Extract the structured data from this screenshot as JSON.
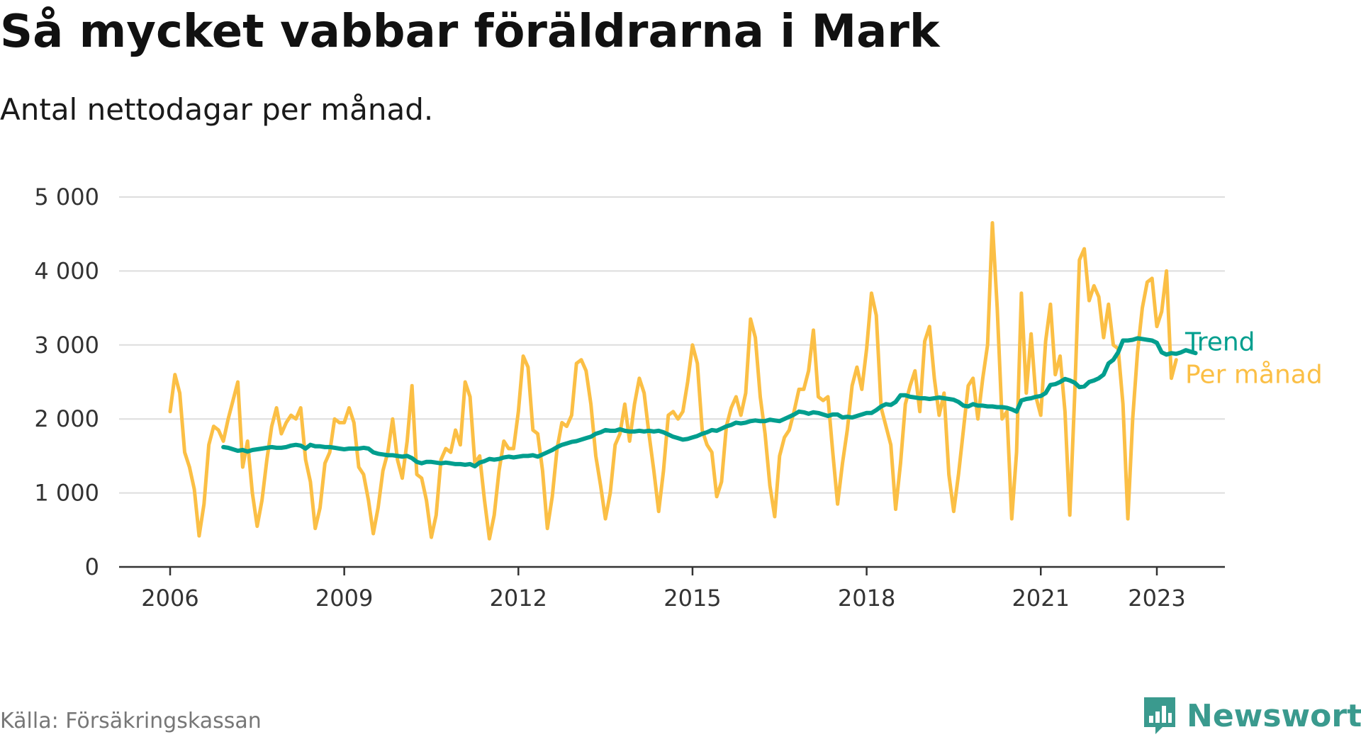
{
  "title": "Så mycket vabbar föräldrarna i Mark",
  "subtitle": "Antal nettodagar per månad.",
  "source": "Källa: Försäkringskassan",
  "brand": "Newsworthy",
  "colors": {
    "monthly": "#fbbf45",
    "trend": "#009e8e",
    "grid": "#dddddd",
    "axis": "#333333",
    "brand": "#3a9a8e"
  },
  "chart_data": {
    "type": "line",
    "title": "Så mycket vabbar föräldrarna i Mark",
    "xlabel": "",
    "ylabel": "",
    "ylim": [
      0,
      5000
    ],
    "xlim": [
      "2006-01",
      "2023-06"
    ],
    "grid": true,
    "legend": "end-of-line labels at right",
    "yticks": [
      0,
      1000,
      2000,
      3000,
      4000,
      5000
    ],
    "ytick_labels": [
      "0",
      "1 000",
      "2 000",
      "3 000",
      "4 000",
      "5 000"
    ],
    "xticks": [
      "2006-01",
      "2009-01",
      "2012-01",
      "2015-01",
      "2018-01",
      "2021-01",
      "2023-01"
    ],
    "xtick_labels": [
      "2006",
      "2009",
      "2012",
      "2015",
      "2018",
      "2021",
      "2023"
    ],
    "series": [
      {
        "name": "Per månad",
        "color": "#fbbf45",
        "start": "2006-01",
        "values": [
          2100,
          2600,
          2350,
          1550,
          1350,
          1050,
          420,
          850,
          1650,
          1900,
          1850,
          1700,
          2000,
          2250,
          2500,
          1350,
          1700,
          1000,
          550,
          900,
          1450,
          1900,
          2150,
          1800,
          1950,
          2050,
          2000,
          2150,
          1450,
          1150,
          520,
          800,
          1400,
          1550,
          2000,
          1950,
          1950,
          2150,
          1950,
          1350,
          1250,
          900,
          450,
          800,
          1300,
          1550,
          2000,
          1450,
          1200,
          1700,
          2450,
          1250,
          1200,
          900,
          400,
          700,
          1450,
          1600,
          1550,
          1850,
          1650,
          2500,
          2300,
          1400,
          1500,
          900,
          380,
          700,
          1300,
          1700,
          1600,
          1600,
          2100,
          2850,
          2700,
          1850,
          1800,
          1300,
          520,
          950,
          1600,
          1950,
          1900,
          2050,
          2750,
          2800,
          2650,
          2200,
          1500,
          1100,
          650,
          1000,
          1650,
          1800,
          2200,
          1700,
          2200,
          2550,
          2350,
          1800,
          1300,
          750,
          1300,
          2050,
          2100,
          2000,
          2100,
          2500,
          3000,
          2750,
          1850,
          1650,
          1550,
          950,
          1150,
          1900,
          2150,
          2300,
          2050,
          2350,
          3350,
          3100,
          2300,
          1800,
          1100,
          680,
          1500,
          1750,
          1850,
          2100,
          2400,
          2400,
          2650,
          3200,
          2300,
          2250,
          2300,
          1550,
          850,
          1400,
          1850,
          2450,
          2700,
          2400,
          2950,
          3700,
          3400,
          2150,
          1900,
          1650,
          780,
          1400,
          2200,
          2450,
          2650,
          2100,
          3050,
          3250,
          2550,
          2050,
          2350,
          1250,
          750,
          1250,
          1850,
          2450,
          2550,
          2000,
          2550,
          3000,
          4650,
          3500,
          2000,
          2100,
          650,
          1550,
          3700,
          2350,
          3150,
          2300,
          2050,
          3050,
          3550,
          2600,
          2850,
          2100,
          700,
          2300,
          4150,
          4300,
          3600,
          3800,
          3650,
          3100,
          3550,
          3000,
          2950,
          2200,
          650,
          2000,
          2900,
          3500,
          3850,
          3900,
          3250,
          3450,
          4000,
          2550,
          2800
        ]
      },
      {
        "name": "Trend",
        "color": "#009e8e",
        "start": "2006-12",
        "values": [
          1620,
          1610,
          1590,
          1570,
          1580,
          1560,
          1580,
          1590,
          1600,
          1610,
          1620,
          1610,
          1610,
          1620,
          1640,
          1650,
          1640,
          1600,
          1650,
          1630,
          1630,
          1620,
          1620,
          1610,
          1600,
          1590,
          1600,
          1600,
          1600,
          1610,
          1600,
          1550,
          1530,
          1520,
          1510,
          1510,
          1500,
          1490,
          1500,
          1470,
          1420,
          1400,
          1420,
          1420,
          1410,
          1400,
          1410,
          1400,
          1390,
          1390,
          1380,
          1390,
          1360,
          1410,
          1430,
          1460,
          1450,
          1460,
          1480,
          1490,
          1480,
          1490,
          1500,
          1500,
          1510,
          1490,
          1520,
          1550,
          1580,
          1620,
          1650,
          1670,
          1690,
          1700,
          1720,
          1740,
          1760,
          1800,
          1820,
          1850,
          1840,
          1840,
          1860,
          1840,
          1830,
          1830,
          1840,
          1830,
          1840,
          1830,
          1840,
          1820,
          1790,
          1760,
          1740,
          1720,
          1730,
          1750,
          1770,
          1800,
          1820,
          1850,
          1840,
          1870,
          1900,
          1920,
          1950,
          1940,
          1950,
          1970,
          1980,
          1970,
          1970,
          1990,
          1980,
          1970,
          2000,
          2030,
          2060,
          2100,
          2090,
          2070,
          2090,
          2080,
          2060,
          2040,
          2060,
          2060,
          2020,
          2030,
          2020,
          2040,
          2060,
          2080,
          2080,
          2120,
          2170,
          2200,
          2190,
          2230,
          2320,
          2320,
          2300,
          2290,
          2280,
          2280,
          2270,
          2280,
          2290,
          2280,
          2270,
          2260,
          2230,
          2180,
          2170,
          2200,
          2180,
          2180,
          2170,
          2170,
          2160,
          2160,
          2150,
          2130,
          2100,
          2250,
          2270,
          2280,
          2300,
          2310,
          2350,
          2460,
          2470,
          2500,
          2540,
          2520,
          2490,
          2430,
          2440,
          2500,
          2520,
          2550,
          2600,
          2750,
          2800,
          2900,
          3060,
          3060,
          3070,
          3090,
          3080,
          3070,
          3060,
          3030,
          2900,
          2870,
          2890,
          2880,
          2900,
          2930,
          2910,
          2890
        ]
      }
    ]
  }
}
